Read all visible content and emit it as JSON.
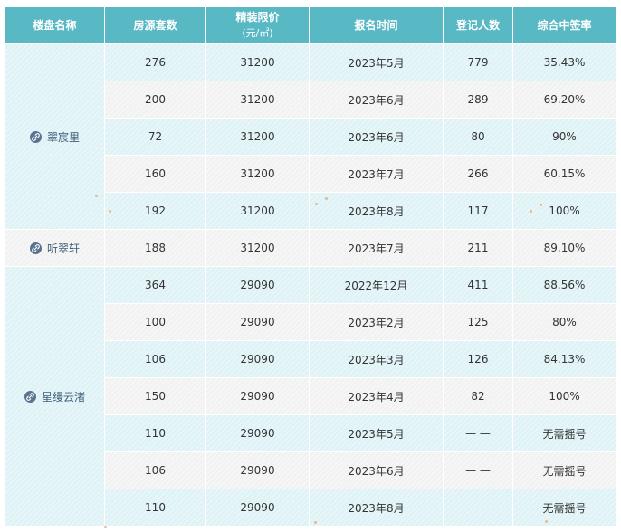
{
  "header": {
    "col_name": "楼盘名称",
    "col_units": "房源套数",
    "col_price": "精装限价",
    "col_price_unit": "(元/㎡)",
    "col_time": "报名时间",
    "col_registered": "登记人数",
    "col_rate": "综合中签率"
  },
  "groups": [
    {
      "name": "翠宸里",
      "icon": "link-icon",
      "rows": [
        {
          "units": "276",
          "price": "31200",
          "time": "2023年5月",
          "registered": "779",
          "rate": "35.43%"
        },
        {
          "units": "200",
          "price": "31200",
          "time": "2023年6月",
          "registered": "289",
          "rate": "69.20%"
        },
        {
          "units": "72",
          "price": "31200",
          "time": "2023年6月",
          "registered": "80",
          "rate": "90%"
        },
        {
          "units": "160",
          "price": "31200",
          "time": "2023年7月",
          "registered": "266",
          "rate": "60.15%"
        },
        {
          "units": "192",
          "price": "31200",
          "time": "2023年8月",
          "registered": "117",
          "rate": "100%"
        }
      ]
    },
    {
      "name": "听翠轩",
      "icon": "link-icon",
      "rows": [
        {
          "units": "188",
          "price": "31200",
          "time": "2023年7月",
          "registered": "211",
          "rate": "89.10%"
        }
      ]
    },
    {
      "name": "星缦云渚",
      "icon": "link-icon",
      "rows": [
        {
          "units": "364",
          "price": "29090",
          "time": "2022年12月",
          "registered": "411",
          "rate": "88.56%"
        },
        {
          "units": "100",
          "price": "29090",
          "time": "2023年2月",
          "registered": "125",
          "rate": "80%"
        },
        {
          "units": "106",
          "price": "29090",
          "time": "2023年3月",
          "registered": "126",
          "rate": "84.13%"
        },
        {
          "units": "150",
          "price": "29090",
          "time": "2023年4月",
          "registered": "82",
          "rate": "100%"
        },
        {
          "units": "110",
          "price": "29090",
          "time": "2023年5月",
          "registered": "— —",
          "rate": "无需摇号"
        },
        {
          "units": "106",
          "price": "29090",
          "time": "2023年6月",
          "registered": "— —",
          "rate": "无需摇号"
        },
        {
          "units": "110",
          "price": "29090",
          "time": "2023年8月",
          "registered": "— —",
          "rate": "无需摇号"
        }
      ]
    }
  ],
  "colors": {
    "header_bg": "#58b8c4",
    "row_cyan": "#dff3f6",
    "row_gray": "#f2f2f2",
    "name_text": "#3e5f7a",
    "icon_bg": "#5a7291"
  }
}
